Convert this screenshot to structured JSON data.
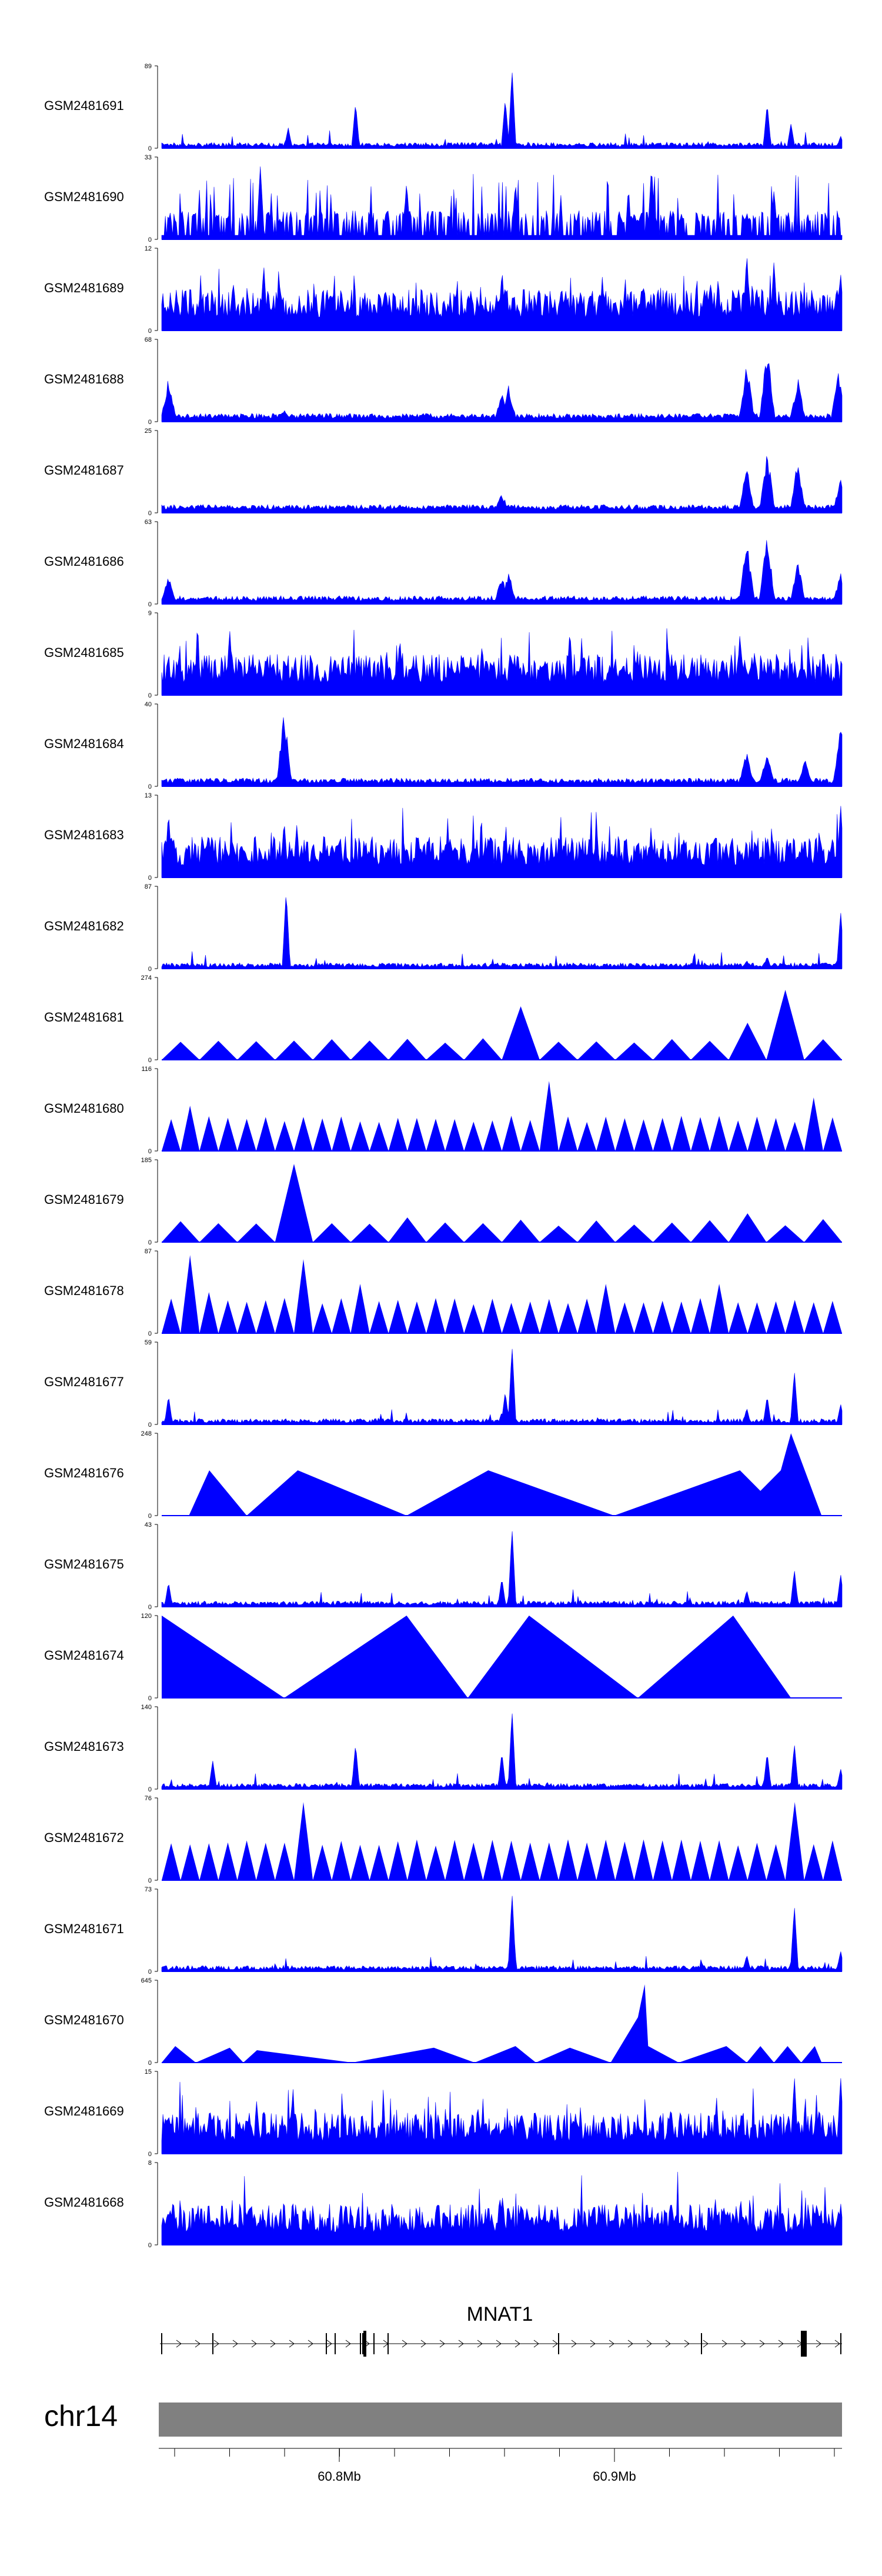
{
  "chart_data": {
    "type": "area",
    "title": "",
    "xlabel": "",
    "ylabel": "",
    "colors": {
      "signal": "#0000ff",
      "ideogram": "#808080",
      "axis": "#000000"
    },
    "tracks": [
      {
        "name": "GSM2481691",
        "ymax": "89",
        "style": "spiky",
        "peaks": [
          [
            0.186,
            0.25
          ],
          [
            0.285,
            0.55
          ],
          [
            0.505,
            0.6
          ],
          [
            0.515,
            0.95
          ],
          [
            0.89,
            0.55
          ],
          [
            0.925,
            0.3
          ],
          [
            0.998,
            0.15
          ]
        ]
      },
      {
        "name": "GSM2481690",
        "ymax": "33",
        "style": "dense-sparse",
        "peaks": [
          [
            0.145,
            0.9
          ],
          [
            0.36,
            0.7
          ],
          [
            0.52,
            0.7
          ],
          [
            0.72,
            0.9
          ],
          [
            0.9,
            0.6
          ]
        ]
      },
      {
        "name": "GSM2481689",
        "ymax": "12",
        "style": "dense",
        "peaks": [
          [
            0.15,
            0.8
          ],
          [
            0.5,
            0.7
          ],
          [
            0.86,
            0.95
          ],
          [
            0.9,
            0.85
          ],
          [
            0.998,
            0.7
          ]
        ]
      },
      {
        "name": "GSM2481688",
        "ymax": "68",
        "style": "broad",
        "peaks": [
          [
            0.01,
            0.55
          ],
          [
            0.18,
            0.15
          ],
          [
            0.5,
            0.35
          ],
          [
            0.51,
            0.45
          ],
          [
            0.86,
            0.75
          ],
          [
            0.89,
            0.95
          ],
          [
            0.935,
            0.55
          ],
          [
            0.995,
            0.65
          ]
        ]
      },
      {
        "name": "GSM2481687",
        "ymax": "25",
        "style": "broad",
        "peaks": [
          [
            0.5,
            0.25
          ],
          [
            0.86,
            0.6
          ],
          [
            0.89,
            0.8
          ],
          [
            0.935,
            0.7
          ],
          [
            0.998,
            0.45
          ]
        ]
      },
      {
        "name": "GSM2481686",
        "ymax": "63",
        "style": "broad",
        "peaks": [
          [
            0.01,
            0.4
          ],
          [
            0.5,
            0.35
          ],
          [
            0.51,
            0.4
          ],
          [
            0.86,
            0.8
          ],
          [
            0.89,
            0.95
          ],
          [
            0.935,
            0.55
          ],
          [
            0.998,
            0.4
          ]
        ]
      },
      {
        "name": "GSM2481685",
        "ymax": "9",
        "style": "dense",
        "peaks": [
          [
            0.1,
            0.8
          ],
          [
            0.35,
            0.7
          ],
          [
            0.6,
            0.8
          ],
          [
            0.85,
            0.75
          ]
        ]
      },
      {
        "name": "GSM2481684",
        "ymax": "40",
        "style": "broad",
        "peaks": [
          [
            0.18,
            0.95
          ],
          [
            0.86,
            0.45
          ],
          [
            0.89,
            0.5
          ],
          [
            0.945,
            0.35
          ],
          [
            0.998,
            0.8
          ]
        ]
      },
      {
        "name": "GSM2481683",
        "ymax": "13",
        "style": "dense",
        "peaks": [
          [
            0.01,
            0.8
          ],
          [
            0.18,
            0.7
          ],
          [
            0.998,
            0.9
          ]
        ]
      },
      {
        "name": "GSM2481682",
        "ymax": "87",
        "style": "spiky",
        "peaks": [
          [
            0.183,
            0.95
          ],
          [
            0.86,
            0.1
          ],
          [
            0.89,
            0.15
          ],
          [
            0.998,
            0.7
          ]
        ]
      },
      {
        "name": "GSM2481681",
        "ymax": "274",
        "style": "triangles",
        "peaks": [
          [
            0.01,
            0.2
          ],
          [
            0.04,
            0.2
          ],
          [
            0.09,
            0.2
          ],
          [
            0.13,
            0.2
          ],
          [
            0.19,
            0.2
          ],
          [
            0.25,
            0.2
          ],
          [
            0.4,
            0.2
          ],
          [
            0.44,
            0.2
          ],
          [
            0.5,
            0.4
          ],
          [
            0.51,
            0.65
          ],
          [
            0.57,
            0.2
          ],
          [
            0.66,
            0.2
          ],
          [
            0.8,
            0.2
          ],
          [
            0.86,
            0.45
          ],
          [
            0.89,
            0.85
          ],
          [
            0.925,
            0.6
          ],
          [
            0.975,
            0.25
          ]
        ]
      },
      {
        "name": "GSM2481680",
        "ymax": "116",
        "style": "triangles",
        "peaks": [
          [
            0.04,
            0.55
          ],
          [
            0.065,
            0.35
          ],
          [
            0.57,
            0.85
          ],
          [
            0.97,
            0.65
          ]
        ]
      },
      {
        "name": "GSM2481679",
        "ymax": "185",
        "style": "triangles",
        "peaks": [
          [
            0.17,
            0.75
          ],
          [
            0.18,
            0.95
          ],
          [
            0.205,
            0.55
          ],
          [
            0.35,
            0.3
          ],
          [
            0.585,
            0.2
          ],
          [
            0.85,
            0.35
          ],
          [
            0.875,
            0.25
          ]
        ]
      },
      {
        "name": "GSM2481678",
        "ymax": "87",
        "style": "triangles",
        "peaks": [
          [
            0.04,
            0.95
          ],
          [
            0.055,
            0.65
          ],
          [
            0.065,
            0.5
          ],
          [
            0.1,
            0.4
          ],
          [
            0.2,
            0.9
          ],
          [
            0.3,
            0.6
          ],
          [
            0.66,
            0.6
          ],
          [
            0.82,
            0.6
          ]
        ]
      },
      {
        "name": "GSM2481677",
        "ymax": "59",
        "style": "spiky",
        "peaks": [
          [
            0.01,
            0.35
          ],
          [
            0.5,
            0.15
          ],
          [
            0.505,
            0.4
          ],
          [
            0.515,
            0.95
          ],
          [
            0.86,
            0.2
          ],
          [
            0.89,
            0.35
          ],
          [
            0.93,
            0.65
          ],
          [
            0.998,
            0.25
          ]
        ]
      },
      {
        "name": "GSM2481676",
        "ymax": "248",
        "style": "triangles",
        "peaks": [
          [
            0.93,
            1.0
          ]
        ]
      },
      {
        "name": "GSM2481675",
        "ymax": "43",
        "style": "spiky",
        "peaks": [
          [
            0.01,
            0.3
          ],
          [
            0.5,
            0.35
          ],
          [
            0.515,
            0.95
          ],
          [
            0.86,
            0.2
          ],
          [
            0.93,
            0.45
          ],
          [
            0.998,
            0.4
          ]
        ]
      },
      {
        "name": "GSM2481674",
        "ymax": "120",
        "style": "triangles",
        "peaks": []
      },
      {
        "name": "GSM2481673",
        "ymax": "140",
        "style": "spiky",
        "peaks": [
          [
            0.075,
            0.35
          ],
          [
            0.285,
            0.55
          ],
          [
            0.5,
            0.45
          ],
          [
            0.515,
            0.95
          ],
          [
            0.89,
            0.45
          ],
          [
            0.93,
            0.55
          ],
          [
            0.998,
            0.25
          ]
        ]
      },
      {
        "name": "GSM2481672",
        "ymax": "76",
        "style": "triangles",
        "peaks": [
          [
            0.2,
            0.95
          ],
          [
            0.205,
            0.6
          ],
          [
            0.93,
            0.95
          ]
        ]
      },
      {
        "name": "GSM2481671",
        "ymax": "73",
        "style": "spiky",
        "peaks": [
          [
            0.515,
            0.95
          ],
          [
            0.86,
            0.2
          ],
          [
            0.93,
            0.8
          ],
          [
            0.998,
            0.25
          ]
        ]
      },
      {
        "name": "GSM2481670",
        "ymax": "645",
        "style": "triangles",
        "peaks": [
          [
            0.7,
            0.55
          ],
          [
            0.71,
            0.95
          ]
        ]
      },
      {
        "name": "GSM2481669",
        "ymax": "15",
        "style": "dense",
        "peaks": [
          [
            0.01,
            0.5
          ],
          [
            0.18,
            0.4
          ],
          [
            0.93,
            0.95
          ],
          [
            0.998,
            0.95
          ]
        ]
      },
      {
        "name": "GSM2481668",
        "ymax": "8",
        "style": "dense",
        "peaks": []
      }
    ],
    "gene": {
      "name": "MNAT1",
      "strand": "+"
    },
    "chromosome": "chr14",
    "x_ticks": [
      "60.8Mb",
      "60.9Mb"
    ]
  }
}
